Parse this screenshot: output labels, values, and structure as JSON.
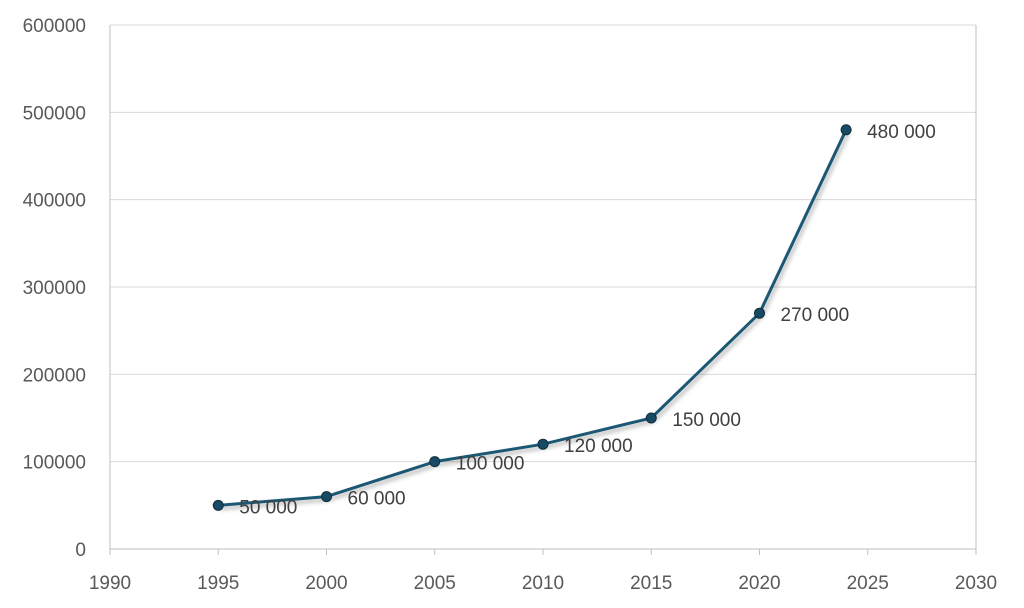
{
  "chart_data": {
    "type": "line",
    "title": "",
    "xlabel": "",
    "ylabel": "",
    "xlim": [
      1990,
      2030
    ],
    "ylim": [
      0,
      600000
    ],
    "x_ticks": [
      1990,
      1995,
      2000,
      2005,
      2010,
      2015,
      2020,
      2025,
      2030
    ],
    "y_ticks": [
      0,
      100000,
      200000,
      300000,
      400000,
      500000,
      600000
    ],
    "x_tick_labels": [
      "1990",
      "1995",
      "2000",
      "2005",
      "2010",
      "2015",
      "2020",
      "2025",
      "2030"
    ],
    "y_tick_labels": [
      "0",
      "100000",
      "200000",
      "300000",
      "400000",
      "500000",
      "600000"
    ],
    "grid": "horizontal",
    "legend": "none",
    "series": [
      {
        "color": "#1f5873",
        "x": [
          1995,
          2000,
          2005,
          2010,
          2015,
          2020,
          2024
        ],
        "y": [
          50000,
          60000,
          100000,
          120000,
          150000,
          270000,
          480000
        ],
        "labels": [
          "50 000",
          "60 000",
          "100 000",
          "120 000",
          "150 000",
          "270 000",
          "480 000"
        ]
      }
    ]
  }
}
